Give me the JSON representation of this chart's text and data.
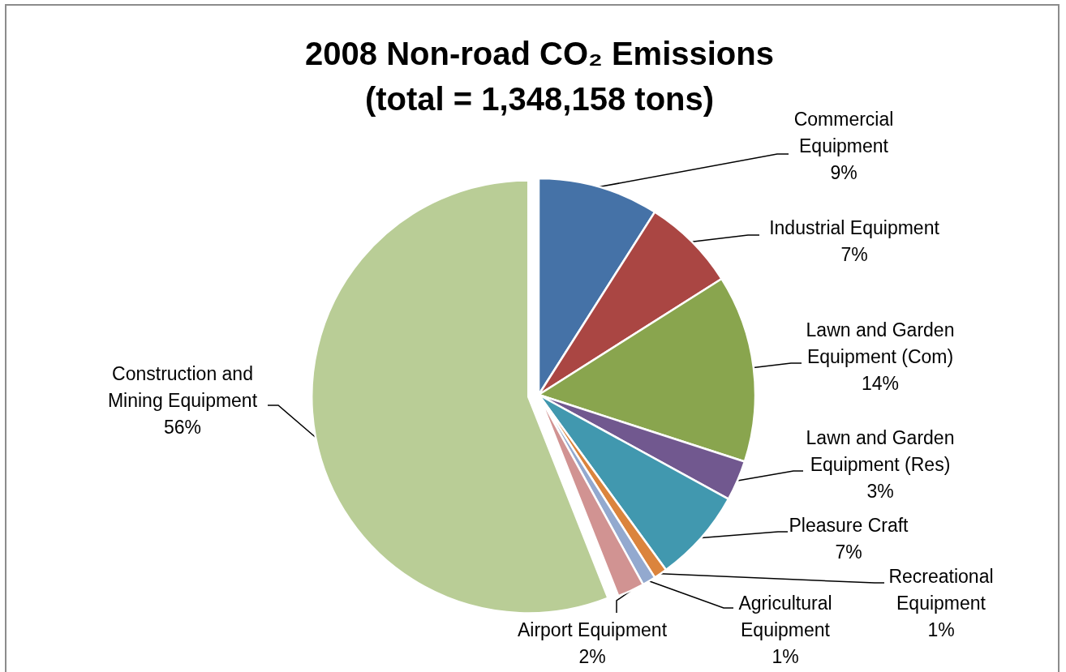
{
  "chart_data": {
    "type": "pie",
    "title": "2008 Non-road CO₂ Emissions\n(total = 1,348,158 tons)",
    "categories": [
      "Commercial\nEquipment",
      "Industrial Equipment",
      "Lawn and Garden\nEquipment (Com)",
      "Lawn and Garden\nEquipment (Res)",
      "Pleasure Craft",
      "Recreational\nEquipment",
      "Agricultural\nEquipment",
      "Airport Equipment",
      "Construction and\nMining Equipment"
    ],
    "values": [
      9,
      7,
      14,
      3,
      7,
      1,
      1,
      2,
      56
    ],
    "colors": [
      "#4572a7",
      "#aa4643",
      "#89a54e",
      "#71588f",
      "#4198af",
      "#db843d",
      "#93a9cf",
      "#d19392",
      "#b9cd96"
    ],
    "value_labels": [
      "9%",
      "7%",
      "14%",
      "3%",
      "7%",
      "1%",
      "1%",
      "2%",
      "56%"
    ]
  }
}
